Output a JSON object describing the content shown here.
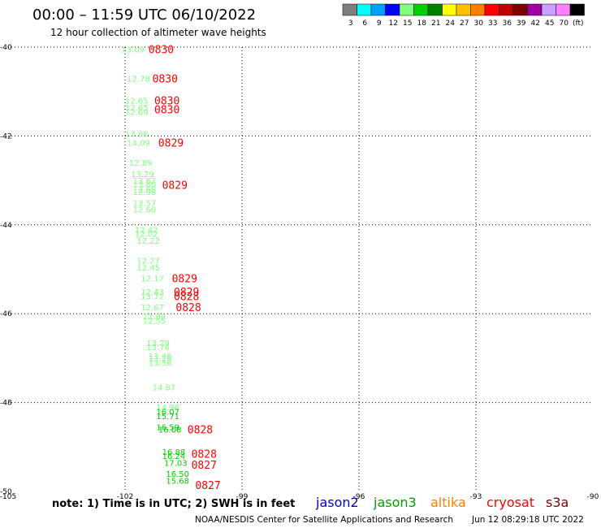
{
  "header": {
    "title": "00:00 – 11:59 UTC 06/10/2022",
    "subtitle": "12 hour collection of altimeter wave heights"
  },
  "colorbar": {
    "colors": [
      "#7f7f7f",
      "#00ffff",
      "#00a0ff",
      "#0000ff",
      "#80ff80",
      "#00d000",
      "#008000",
      "#ffff00",
      "#ffc000",
      "#ff8000",
      "#ff0000",
      "#c00000",
      "#800000",
      "#a000a0",
      "#c8a0ff",
      "#ff80ff",
      "#000000"
    ],
    "ticks": [
      "3",
      "6",
      "9",
      "12",
      "15",
      "18",
      "21",
      "24",
      "27",
      "30",
      "33",
      "36",
      "39",
      "42",
      "45",
      "70",
      "(ft)"
    ]
  },
  "footer": {
    "note": "note:  1) Time is in UTC;  2) SWH is in feet",
    "credit": "NOAA/NESDIS Center for Satellite Applications and Research",
    "generated": "Jun 12 08:29:18 UTC 2022"
  },
  "legend": [
    {
      "name": "jason2",
      "color": "#0000cc"
    },
    {
      "name": "jason3",
      "color": "#00a000"
    },
    {
      "name": "altika",
      "color": "#ff8000"
    },
    {
      "name": "cryosat",
      "color": "#ff0000"
    },
    {
      "name": "s3a",
      "color": "#800000"
    }
  ],
  "chart_data": {
    "type": "scatter",
    "title": "00:00 – 11:59 UTC 06/10/2022",
    "subtitle": "12 hour collection of altimeter wave heights",
    "x_ticks": [
      "-105",
      "-102",
      "-99",
      "-96",
      "-93",
      "-90"
    ],
    "y_ticks": [
      "-40",
      "-42",
      "-44",
      "-46",
      "-48",
      "-50"
    ],
    "xlim": [
      -105,
      -90
    ],
    "ylim": [
      -50,
      -40
    ],
    "grid": true,
    "points": [
      {
        "lon": -102.1,
        "lat": -40.05,
        "v": "13.09",
        "c": "#80ff80"
      },
      {
        "lon": -101.95,
        "lat": -40.7,
        "v": "12.78",
        "c": "#80ff80"
      },
      {
        "lon": -102.0,
        "lat": -41.2,
        "v": "12.65",
        "c": "#80ff80"
      },
      {
        "lon": -102.0,
        "lat": -41.35,
        "v": "12.65",
        "c": "#80ff80"
      },
      {
        "lon": -102.0,
        "lat": -41.45,
        "v": "12.69",
        "c": "#80ff80"
      },
      {
        "lon": -102.0,
        "lat": -41.95,
        "v": "13.88",
        "c": "#80ff80"
      },
      {
        "lon": -101.95,
        "lat": -42.15,
        "v": "14.09",
        "c": "#80ff80"
      },
      {
        "lon": -101.9,
        "lat": -42.6,
        "v": "12.89",
        "c": "#80ff80"
      },
      {
        "lon": -101.85,
        "lat": -42.85,
        "v": "13.29",
        "c": "#80ff80"
      },
      {
        "lon": -101.8,
        "lat": -43.0,
        "v": "13.62",
        "c": "#80ff80"
      },
      {
        "lon": -101.8,
        "lat": -43.08,
        "v": "13.80",
        "c": "#80ff80"
      },
      {
        "lon": -101.8,
        "lat": -43.2,
        "v": "13.68",
        "c": "#80ff80"
      },
      {
        "lon": -101.8,
        "lat": -43.25,
        "v": "12.98",
        "c": "#80ff80"
      },
      {
        "lon": -101.8,
        "lat": -43.5,
        "v": "13.57",
        "c": "#80ff80"
      },
      {
        "lon": -101.8,
        "lat": -43.65,
        "v": "12.68",
        "c": "#80ff80"
      },
      {
        "lon": -101.75,
        "lat": -44.1,
        "v": "12.42",
        "c": "#80ff80"
      },
      {
        "lon": -101.75,
        "lat": -44.2,
        "v": "12.02",
        "c": "#80ff80"
      },
      {
        "lon": -101.7,
        "lat": -44.35,
        "v": "12.22",
        "c": "#80ff80"
      },
      {
        "lon": -101.7,
        "lat": -44.8,
        "v": "12.27",
        "c": "#80ff80"
      },
      {
        "lon": -101.7,
        "lat": -44.95,
        "v": "12.45",
        "c": "#80ff80"
      },
      {
        "lon": -101.6,
        "lat": -45.2,
        "v": "12.17",
        "c": "#80ff80"
      },
      {
        "lon": -101.6,
        "lat": -45.5,
        "v": "12.43",
        "c": "#80ff80"
      },
      {
        "lon": -101.6,
        "lat": -45.6,
        "v": "13.72",
        "c": "#80ff80"
      },
      {
        "lon": -101.6,
        "lat": -45.85,
        "v": "12.67",
        "c": "#80ff80"
      },
      {
        "lon": -101.55,
        "lat": -46.05,
        "v": "12.84",
        "c": "#80ff80"
      },
      {
        "lon": -101.55,
        "lat": -46.15,
        "v": "12.55",
        "c": "#80ff80"
      },
      {
        "lon": -101.45,
        "lat": -46.65,
        "v": "13.79",
        "c": "#80ff80"
      },
      {
        "lon": -101.45,
        "lat": -46.75,
        "v": "13.76",
        "c": "#80ff80"
      },
      {
        "lon": -101.4,
        "lat": -46.95,
        "v": "13.46",
        "c": "#80ff80"
      },
      {
        "lon": -101.4,
        "lat": -47.0,
        "v": "13.28",
        "c": "#80ff80"
      },
      {
        "lon": -101.4,
        "lat": -47.1,
        "v": "13.56",
        "c": "#80ff80"
      },
      {
        "lon": -101.3,
        "lat": -47.65,
        "v": "14.87",
        "c": "#80ff80"
      },
      {
        "lon": -101.2,
        "lat": -48.1,
        "v": "14.96",
        "c": "#80ff80"
      },
      {
        "lon": -101.2,
        "lat": -48.2,
        "v": "16.07",
        "c": "#00d000"
      },
      {
        "lon": -101.2,
        "lat": -48.3,
        "v": "15.71",
        "c": "#00d000"
      },
      {
        "lon": -101.2,
        "lat": -48.55,
        "v": "16.59",
        "c": "#00d000"
      },
      {
        "lon": -101.15,
        "lat": -48.6,
        "v": "16.08",
        "c": "#00d000"
      },
      {
        "lon": -101.05,
        "lat": -49.1,
        "v": "16.88",
        "c": "#00d000"
      },
      {
        "lon": -101.05,
        "lat": -49.2,
        "v": "16.24",
        "c": "#00d000"
      },
      {
        "lon": -101.0,
        "lat": -49.35,
        "v": "17.03",
        "c": "#00d000"
      },
      {
        "lon": -100.95,
        "lat": -49.6,
        "v": "16.50",
        "c": "#00d000"
      },
      {
        "lon": -100.95,
        "lat": -49.75,
        "v": "15.68",
        "c": "#00d000"
      }
    ],
    "time_labels": [
      {
        "lon": -101.4,
        "lat": -40.05,
        "t": "0830"
      },
      {
        "lon": -101.3,
        "lat": -40.7,
        "t": "0830"
      },
      {
        "lon": -101.25,
        "lat": -41.2,
        "t": "0830"
      },
      {
        "lon": -101.25,
        "lat": -41.4,
        "t": "0830"
      },
      {
        "lon": -101.15,
        "lat": -42.15,
        "t": "0829"
      },
      {
        "lon": -101.05,
        "lat": -43.1,
        "t": "0829"
      },
      {
        "lon": -100.8,
        "lat": -45.2,
        "t": "0829"
      },
      {
        "lon": -100.75,
        "lat": -45.5,
        "t": "0829"
      },
      {
        "lon": -100.75,
        "lat": -45.6,
        "t": "0828"
      },
      {
        "lon": -100.7,
        "lat": -45.85,
        "t": "0828"
      },
      {
        "lon": -100.4,
        "lat": -48.6,
        "t": "0828"
      },
      {
        "lon": -100.3,
        "lat": -49.15,
        "t": "0828"
      },
      {
        "lon": -100.3,
        "lat": -49.4,
        "t": "0827"
      },
      {
        "lon": -100.2,
        "lat": -49.85,
        "t": "0827"
      }
    ]
  }
}
